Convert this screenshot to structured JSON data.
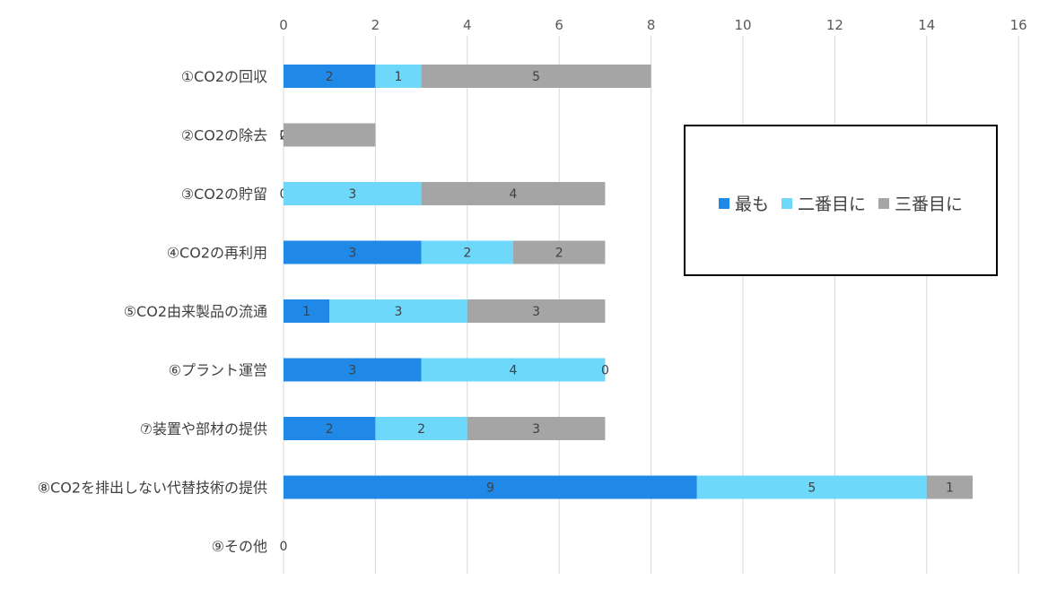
{
  "chart_data": {
    "type": "bar",
    "orientation": "horizontal",
    "stacked": true,
    "categories": [
      "①CO2の回収",
      "②CO2の除去",
      "③CO2の貯留",
      "④CO2の再利用",
      "⑤CO2由来製品の流通",
      "⑥プラント運営",
      "⑦装置や部材の提供",
      "⑧CO2を排出しない代替技術の提供",
      "⑨その他"
    ],
    "series": [
      {
        "name": "最も",
        "color": "#2089E8",
        "values": [
          2,
          0,
          0,
          3,
          1,
          3,
          2,
          9,
          0
        ]
      },
      {
        "name": "二番目に",
        "color": "#6DD8FA",
        "values": [
          1,
          0,
          3,
          2,
          3,
          4,
          2,
          5,
          0
        ]
      },
      {
        "name": "三番目に",
        "color": "#A5A5A5",
        "values": [
          5,
          2,
          4,
          2,
          3,
          0,
          3,
          1,
          0
        ]
      }
    ],
    "data_labels": [
      [
        "2",
        "1",
        "5"
      ],
      [
        "0",
        "2"
      ],
      [
        "0",
        "3",
        "4"
      ],
      [
        "3",
        "2",
        "2"
      ],
      [
        "1",
        "3",
        "3"
      ],
      [
        "3",
        "4",
        "0"
      ],
      [
        "2",
        "2",
        "3"
      ],
      [
        "9",
        "5",
        "1"
      ],
      [
        "0"
      ]
    ],
    "xlim": [
      0,
      16
    ],
    "xticks": [
      0,
      2,
      4,
      6,
      8,
      10,
      12,
      14,
      16
    ],
    "x_axis_position": "top",
    "grid": true,
    "legend_position": "right-center"
  }
}
